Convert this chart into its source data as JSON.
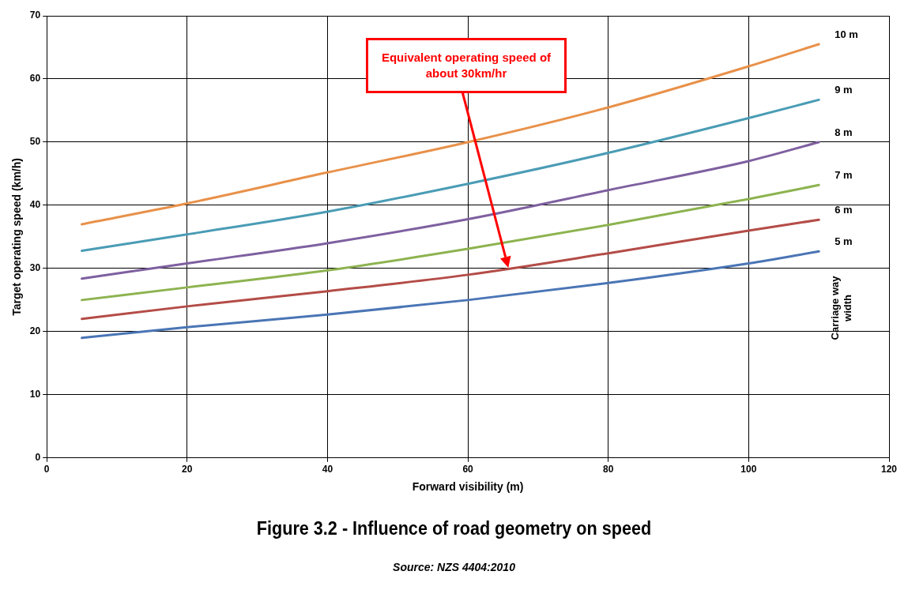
{
  "chart_data": {
    "type": "line",
    "title": "Figure 3.2 - Influence of road geometry on speed",
    "xlabel": "Forward visibility (m)",
    "ylabel": "Target operating speed (km/h)",
    "legend_title": "Carriage way width",
    "annotations": [
      "Equivalent operating speed of about 30km/hr",
      "Source: NZS 4404:2010"
    ],
    "xlim": [
      0,
      120
    ],
    "xticks": [
      0,
      20,
      40,
      60,
      80,
      100,
      120
    ],
    "ylim": [
      0,
      70
    ],
    "yticks": [
      0,
      10,
      20,
      30,
      40,
      50,
      60,
      70
    ],
    "grid": true,
    "marker": "none",
    "line_style": "solid",
    "series": [
      {
        "name": "10 m",
        "color": "#e8914a",
        "x": [
          5,
          20,
          40,
          60,
          80,
          100,
          110
        ],
        "values": [
          37,
          40.3,
          45.2,
          50,
          55.5,
          62,
          65.5
        ]
      },
      {
        "name": "9 m",
        "color": "#4a9cb5",
        "x": [
          5,
          20,
          40,
          60,
          80,
          100,
          110
        ],
        "values": [
          32.8,
          35.4,
          39,
          43.4,
          48.3,
          53.8,
          56.7
        ]
      },
      {
        "name": "8 m",
        "color": "#7e60a0",
        "x": [
          5,
          20,
          40,
          60,
          80,
          100,
          110
        ],
        "values": [
          28.4,
          30.8,
          34,
          37.8,
          42.4,
          47,
          50
        ]
      },
      {
        "name": "7 m",
        "color": "#8db350",
        "x": [
          5,
          20,
          40,
          60,
          80,
          100,
          110
        ],
        "values": [
          25,
          27,
          29.7,
          33.1,
          36.9,
          41,
          43.2
        ]
      },
      {
        "name": "6 m",
        "color": "#b44c47",
        "x": [
          5,
          20,
          40,
          60,
          80,
          100,
          110
        ],
        "values": [
          22,
          24,
          26.4,
          29,
          32.4,
          36,
          37.7
        ]
      },
      {
        "name": "5 m",
        "color": "#4a75b5",
        "x": [
          5,
          20,
          40,
          60,
          80,
          100,
          110
        ],
        "values": [
          19,
          20.7,
          22.7,
          25,
          27.7,
          30.8,
          32.7
        ]
      }
    ]
  }
}
